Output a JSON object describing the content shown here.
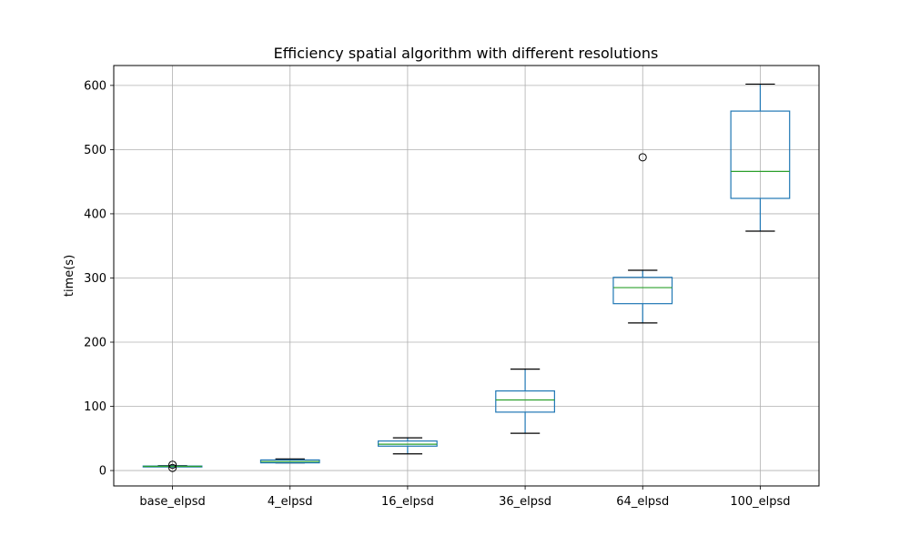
{
  "chart_data": {
    "type": "boxplot",
    "title": "Efficiency spatial algorithm with different resolutions",
    "xlabel": "",
    "ylabel": "time(s)",
    "ylim": [
      -24,
      631
    ],
    "yticks": [
      0,
      100,
      200,
      300,
      400,
      500,
      600
    ],
    "grid": true,
    "colors": {
      "box": "#1f77b4",
      "median": "#2ca02c",
      "whisker_cap": "#000000",
      "grid": "#b0b0b0"
    },
    "categories": [
      "base_elpsd",
      "4_elpsd",
      "16_elpsd",
      "36_elpsd",
      "64_elpsd",
      "100_elpsd"
    ],
    "boxes": [
      {
        "label": "base_elpsd",
        "whisker_low": 6,
        "q1": 6,
        "median": 6.5,
        "q3": 7,
        "whisker_high": 7.5,
        "outliers": [
          4,
          9
        ]
      },
      {
        "label": "4_elpsd",
        "whisker_low": 12,
        "q1": 12,
        "median": 14,
        "q3": 16.5,
        "whisker_high": 18,
        "outliers": []
      },
      {
        "label": "16_elpsd",
        "whisker_low": 26,
        "q1": 38,
        "median": 41,
        "q3": 46,
        "whisker_high": 51,
        "outliers": []
      },
      {
        "label": "36_elpsd",
        "whisker_low": 58,
        "q1": 91,
        "median": 110,
        "q3": 124,
        "whisker_high": 158,
        "outliers": []
      },
      {
        "label": "64_elpsd",
        "whisker_low": 230,
        "q1": 260,
        "median": 285,
        "q3": 301,
        "whisker_high": 312,
        "outliers": [
          488
        ]
      },
      {
        "label": "100_elpsd",
        "whisker_low": 373,
        "q1": 424,
        "median": 466,
        "q3": 560,
        "whisker_high": 602,
        "outliers": []
      }
    ]
  }
}
